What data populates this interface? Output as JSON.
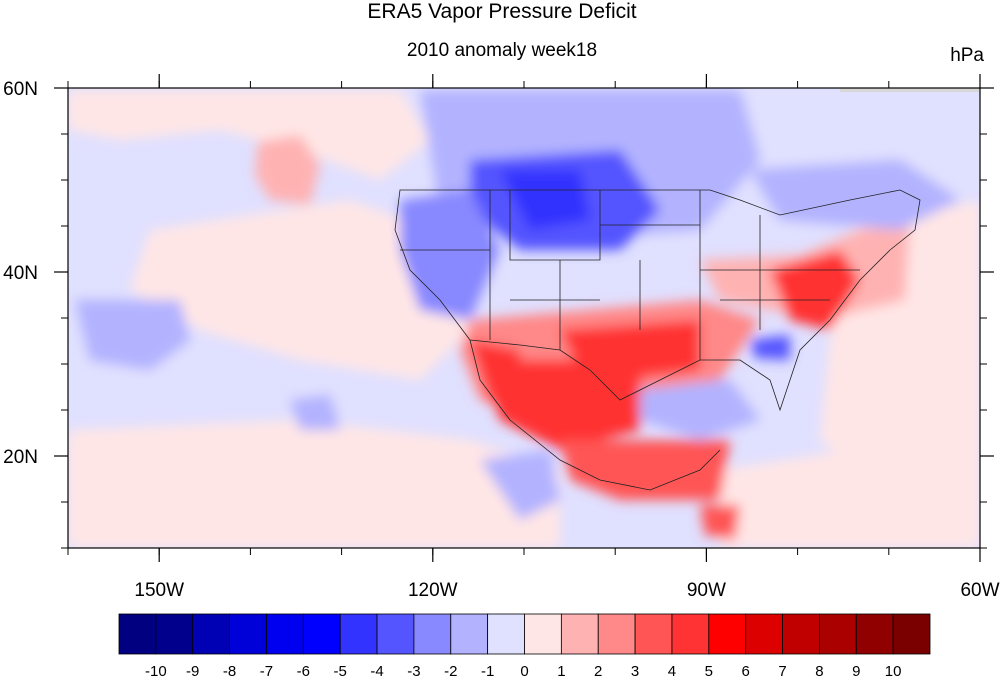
{
  "title": "ERA5 Vapor Pressure Deficit",
  "subtitle": "2010 anomaly week18",
  "units": "hPa",
  "map": {
    "lon_range": [
      -160,
      -60
    ],
    "lat_range": [
      10,
      60
    ],
    "x_ticks": [
      {
        "lon": -150,
        "label": "150W"
      },
      {
        "lon": -120,
        "label": "120W"
      },
      {
        "lon": -90,
        "label": "90W"
      },
      {
        "lon": -60,
        "label": "60W"
      }
    ],
    "y_ticks": [
      {
        "lat": 60,
        "label": "60N"
      },
      {
        "lat": 40,
        "label": "40N"
      },
      {
        "lat": 20,
        "label": "20N"
      }
    ],
    "anomaly_regions": [
      {
        "name": "northern-plains-dry-deficit-negative",
        "level": -5
      },
      {
        "name": "southern-plains-mexico-positive",
        "level": 6
      },
      {
        "name": "mid-atlantic-positive",
        "level": 7
      }
    ]
  },
  "colorbar": {
    "colors": [
      "#000080",
      "#00008c",
      "#0000b4",
      "#0000d8",
      "#0000f0",
      "#0000ff",
      "#3333ff",
      "#5555ff",
      "#8888ff",
      "#b2b2ff",
      "#e0e0ff",
      "#ffe6e6",
      "#ffb2b2",
      "#ff8888",
      "#ff5555",
      "#ff3333",
      "#ff0000",
      "#dd0000",
      "#c00000",
      "#aa0000",
      "#900000",
      "#7a0000"
    ],
    "labels": [
      "-10",
      "-9",
      "-8",
      "-7",
      "-6",
      "-5",
      "-4",
      "-3",
      "-2",
      "-1",
      "0",
      "1",
      "2",
      "3",
      "4",
      "5",
      "6",
      "7",
      "8",
      "9",
      "10"
    ]
  }
}
